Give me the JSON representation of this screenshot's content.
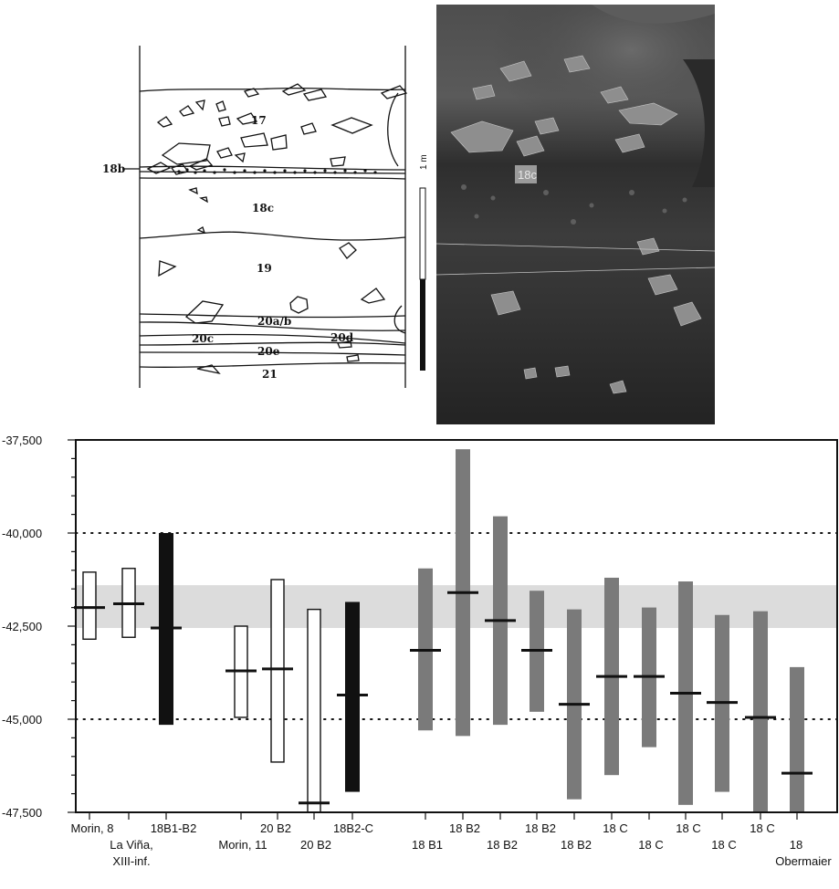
{
  "section_drawing": {
    "layers": [
      "17",
      "18b",
      "18c",
      "19",
      "20a/b",
      "20c",
      "20d",
      "20e",
      "21"
    ],
    "scale_label": "1 m"
  },
  "photo": {
    "layer_tag": "18c"
  },
  "chart_data": {
    "type": "range",
    "ylim": [
      -47500,
      -37500
    ],
    "yticks": [
      "-37,500",
      "-40,000",
      "-42,500",
      "-45,000",
      "-47,500"
    ],
    "gridlines": [
      -40000,
      -45000
    ],
    "shaded_band": [
      -41400,
      -42550
    ],
    "grid": "dotted horizontal",
    "samples": [
      {
        "label": "Morin, 8",
        "low": -42850,
        "high": -41050,
        "median": -42000,
        "style": "open"
      },
      {
        "label": "La Viña, XIII-inf.",
        "low": -42800,
        "high": -40950,
        "median": -41900,
        "style": "open"
      },
      {
        "label": "18B1-B2",
        "low": -45150,
        "high": -40000,
        "median": -42550,
        "style": "black"
      },
      {
        "label": "Morin, 11",
        "low": -44950,
        "high": -42500,
        "median": -43700,
        "style": "open"
      },
      {
        "label": "20 B2",
        "low": -46150,
        "high": -41250,
        "median": -43650,
        "style": "open"
      },
      {
        "label": "20 B2",
        "low": -47600,
        "high": -42050,
        "median": -47250,
        "style": "open"
      },
      {
        "label": "18B2-C",
        "low": -46950,
        "high": -41850,
        "median": -44350,
        "style": "black"
      },
      {
        "label": "18 B1",
        "low": -45300,
        "high": -40950,
        "median": -43150,
        "style": "grey"
      },
      {
        "label": "18 B2",
        "low": -45450,
        "high": -37750,
        "median": -41600,
        "style": "grey"
      },
      {
        "label": "18 B2",
        "low": -45150,
        "high": -39550,
        "median": -42350,
        "style": "grey"
      },
      {
        "label": "18 B2",
        "low": -44800,
        "high": -41550,
        "median": -43150,
        "style": "grey"
      },
      {
        "label": "18 B2",
        "low": -47150,
        "high": -42050,
        "median": -44600,
        "style": "grey"
      },
      {
        "label": "18 C",
        "low": -46500,
        "high": -41200,
        "median": -43850,
        "style": "grey"
      },
      {
        "label": "18 C",
        "low": -45750,
        "high": -42000,
        "median": -43850,
        "style": "grey"
      },
      {
        "label": "18 C",
        "low": -47300,
        "high": -41300,
        "median": -44300,
        "style": "grey"
      },
      {
        "label": "18 C",
        "low": -46950,
        "high": -42200,
        "median": -44550,
        "style": "grey"
      },
      {
        "label": "18 C",
        "low": -47600,
        "high": -42100,
        "median": -44950,
        "style": "grey"
      },
      {
        "label": "18 Obermaier",
        "low": -47600,
        "high": -43600,
        "median": -46450,
        "style": "grey"
      }
    ]
  },
  "colors": {
    "open_fill": "#ffffff",
    "black_fill": "#111111",
    "grey_fill": "#7a7a7a",
    "band": "#dcdcdc"
  }
}
